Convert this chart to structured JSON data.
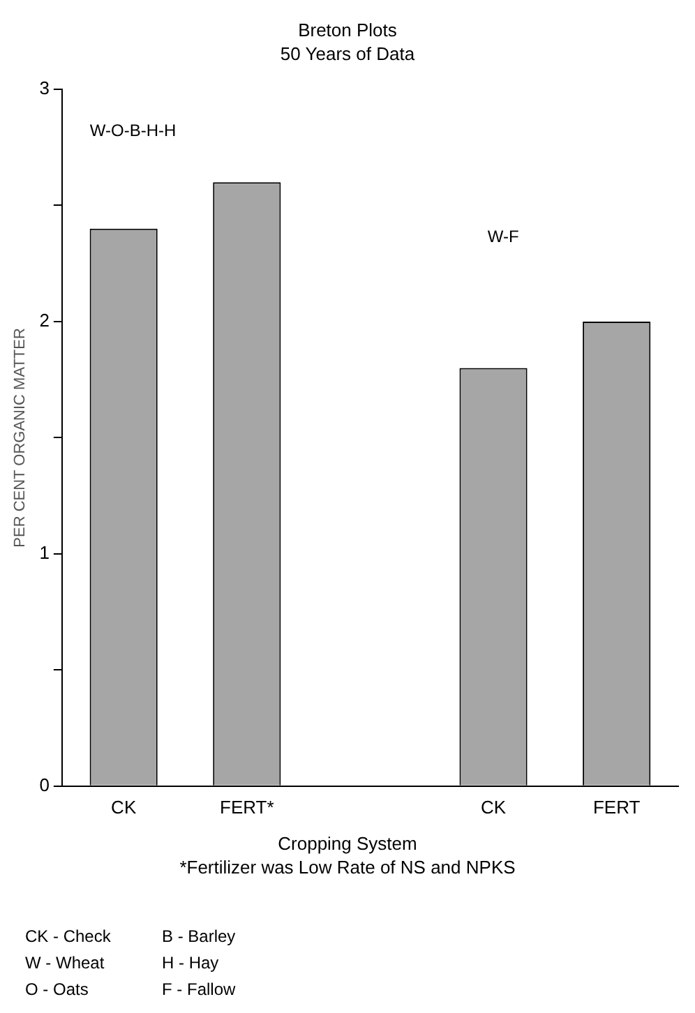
{
  "chart_data": {
    "type": "bar",
    "title": "Breton Plots",
    "subtitle": "50 Years of Data",
    "xlabel": "Cropping System",
    "ylabel": "PER CENT ORGANIC MATTER",
    "categories": [
      "CK",
      "FERT*",
      null,
      "CK",
      "FERT"
    ],
    "values": [
      2.4,
      2.6,
      null,
      1.8,
      2.0
    ],
    "color": "#a6a6a6",
    "ylim": [
      0,
      3
    ],
    "yticks": [
      0,
      {
        "value": 0.5,
        "label": null
      },
      1,
      {
        "value": 1.5,
        "label": null
      },
      2,
      {
        "value": 2.5,
        "label": null
      },
      3
    ],
    "grid": false,
    "legend": false,
    "annotations": [
      "W-O-B-H-H",
      "W-F",
      "*Fertilizer was Low Rate of NS and NPKS",
      "CK - Check",
      "W - Wheat",
      "O - Oats",
      "B - Barley",
      "H - Hay",
      "F - Fallow"
    ]
  }
}
